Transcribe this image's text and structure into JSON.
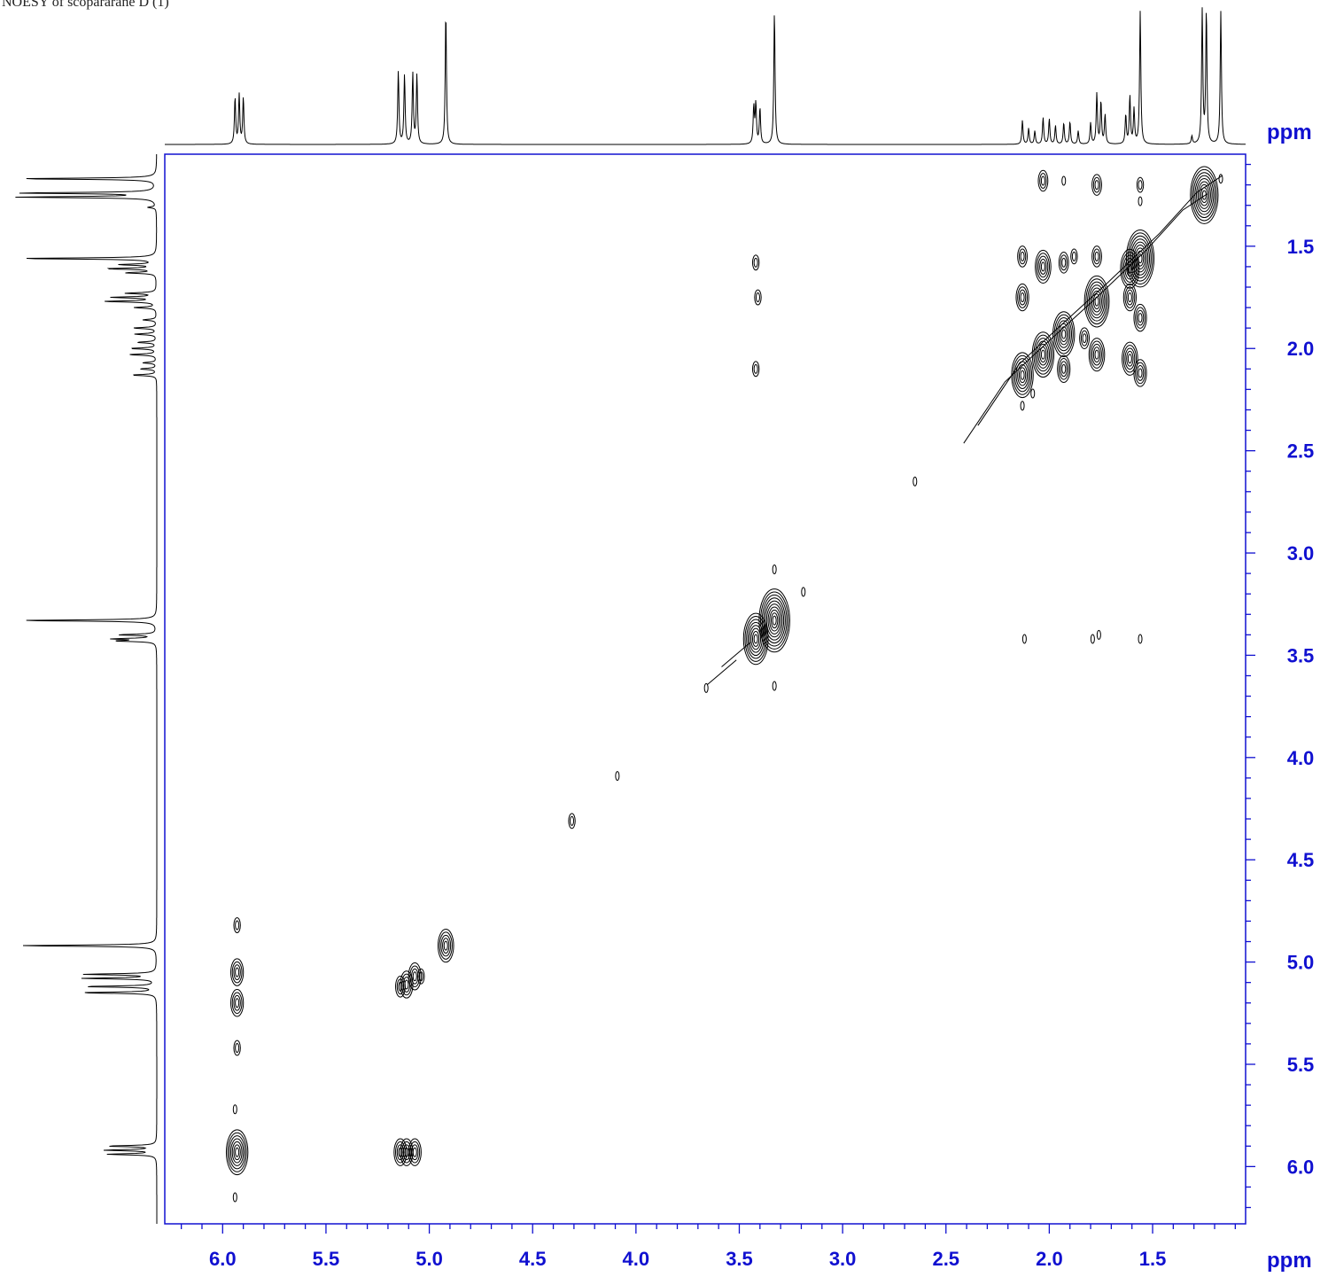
{
  "title": "NOESY of scopararane D (1)",
  "colors": {
    "axis": "#1010d0",
    "trace": "#000000"
  },
  "chart_data": {
    "type": "contour",
    "x_unit": "ppm",
    "y_unit": "ppm",
    "xlim": [
      6.28,
      1.05
    ],
    "ylim": [
      1.05,
      6.28
    ],
    "x_ticks": [
      6.0,
      5.5,
      5.0,
      4.5,
      4.0,
      3.5,
      3.0,
      2.5,
      2.0,
      1.5
    ],
    "y_ticks": [
      1.5,
      2.0,
      2.5,
      3.0,
      3.5,
      4.0,
      4.5,
      5.0,
      5.5,
      6.0
    ],
    "x_tick_labels": [
      "6.0",
      "5.5",
      "5.0",
      "4.5",
      "4.0",
      "3.5",
      "3.0",
      "2.5",
      "2.0",
      "1.5"
    ],
    "y_tick_labels": [
      "1.5",
      "2.0",
      "2.5",
      "3.0",
      "3.5",
      "4.0",
      "4.5",
      "5.0",
      "5.5",
      "6.0"
    ],
    "projection_1d": [
      {
        "shift": 5.94,
        "height": 0.35
      },
      {
        "shift": 5.92,
        "height": 0.37
      },
      {
        "shift": 5.9,
        "height": 0.35
      },
      {
        "shift": 5.15,
        "height": 0.55
      },
      {
        "shift": 5.12,
        "height": 0.52
      },
      {
        "shift": 5.08,
        "height": 0.53
      },
      {
        "shift": 5.06,
        "height": 0.52
      },
      {
        "shift": 4.92,
        "height": 1.0
      },
      {
        "shift": 3.43,
        "height": 0.28
      },
      {
        "shift": 3.42,
        "height": 0.3
      },
      {
        "shift": 3.4,
        "height": 0.27
      },
      {
        "shift": 3.33,
        "height": 1.0
      },
      {
        "shift": 2.13,
        "height": 0.18
      },
      {
        "shift": 2.1,
        "height": 0.12
      },
      {
        "shift": 2.07,
        "height": 0.1
      },
      {
        "shift": 2.03,
        "height": 0.2
      },
      {
        "shift": 2.0,
        "height": 0.19
      },
      {
        "shift": 1.97,
        "height": 0.14
      },
      {
        "shift": 1.93,
        "height": 0.16
      },
      {
        "shift": 1.9,
        "height": 0.17
      },
      {
        "shift": 1.86,
        "height": 0.1
      },
      {
        "shift": 1.8,
        "height": 0.16
      },
      {
        "shift": 1.77,
        "height": 0.38
      },
      {
        "shift": 1.75,
        "height": 0.32
      },
      {
        "shift": 1.73,
        "height": 0.22
      },
      {
        "shift": 1.63,
        "height": 0.22
      },
      {
        "shift": 1.61,
        "height": 0.36
      },
      {
        "shift": 1.59,
        "height": 0.26
      },
      {
        "shift": 1.56,
        "height": 1.0
      },
      {
        "shift": 1.31,
        "height": 0.06
      },
      {
        "shift": 1.26,
        "height": 1.0
      },
      {
        "shift": 1.24,
        "height": 1.0
      },
      {
        "shift": 1.17,
        "height": 1.0
      }
    ],
    "diagonal_peaks": [
      {
        "x": 5.93,
        "y": 5.93,
        "i": 7
      },
      {
        "x": 5.11,
        "y": 5.11,
        "i": 4
      },
      {
        "x": 5.07,
        "y": 5.07,
        "i": 4
      },
      {
        "x": 4.92,
        "y": 4.92,
        "i": 5
      },
      {
        "x": 4.31,
        "y": 4.31,
        "i": 2
      },
      {
        "x": 4.09,
        "y": 4.09,
        "i": 1
      },
      {
        "x": 3.66,
        "y": 3.66,
        "i": 1
      },
      {
        "x": 3.42,
        "y": 3.42,
        "i": 8
      },
      {
        "x": 3.33,
        "y": 3.33,
        "i": 10
      },
      {
        "x": 3.19,
        "y": 3.19,
        "i": 1
      },
      {
        "x": 2.65,
        "y": 2.65,
        "i": 1
      },
      {
        "x": 2.13,
        "y": 2.13,
        "i": 7
      },
      {
        "x": 2.03,
        "y": 2.03,
        "i": 7
      },
      {
        "x": 1.93,
        "y": 1.93,
        "i": 7
      },
      {
        "x": 1.77,
        "y": 1.77,
        "i": 8
      },
      {
        "x": 1.61,
        "y": 1.61,
        "i": 6
      },
      {
        "x": 1.56,
        "y": 1.56,
        "i": 9
      },
      {
        "x": 1.25,
        "y": 1.25,
        "i": 9
      }
    ],
    "cross_peaks": [
      {
        "x": 5.93,
        "y": 5.05,
        "i": 4
      },
      {
        "x": 5.93,
        "y": 5.2,
        "i": 4
      },
      {
        "x": 5.93,
        "y": 4.82,
        "i": 2
      },
      {
        "x": 5.93,
        "y": 5.42,
        "i": 2
      },
      {
        "x": 5.14,
        "y": 5.93,
        "i": 4
      },
      {
        "x": 5.11,
        "y": 5.93,
        "i": 4
      },
      {
        "x": 5.07,
        "y": 5.93,
        "i": 4
      },
      {
        "x": 5.14,
        "y": 5.12,
        "i": 3
      },
      {
        "x": 5.04,
        "y": 5.07,
        "i": 2
      },
      {
        "x": 3.42,
        "y": 1.58,
        "i": 2
      },
      {
        "x": 3.41,
        "y": 1.75,
        "i": 2
      },
      {
        "x": 3.42,
        "y": 2.1,
        "i": 2
      },
      {
        "x": 2.12,
        "y": 3.42,
        "i": 1
      },
      {
        "x": 1.79,
        "y": 3.42,
        "i": 1
      },
      {
        "x": 1.76,
        "y": 3.4,
        "i": 1
      },
      {
        "x": 1.56,
        "y": 3.42,
        "i": 1
      },
      {
        "x": 2.03,
        "y": 1.18,
        "i": 3
      },
      {
        "x": 1.93,
        "y": 1.18,
        "i": 1
      },
      {
        "x": 1.77,
        "y": 1.2,
        "i": 3
      },
      {
        "x": 1.56,
        "y": 1.2,
        "i": 2
      },
      {
        "x": 1.17,
        "y": 1.17,
        "i": 1
      },
      {
        "x": 2.13,
        "y": 1.75,
        "i": 4
      },
      {
        "x": 2.13,
        "y": 1.55,
        "i": 3
      },
      {
        "x": 2.03,
        "y": 1.6,
        "i": 5
      },
      {
        "x": 1.93,
        "y": 2.1,
        "i": 4
      },
      {
        "x": 1.93,
        "y": 1.58,
        "i": 3
      },
      {
        "x": 1.77,
        "y": 2.03,
        "i": 5
      },
      {
        "x": 1.77,
        "y": 1.55,
        "i": 3
      },
      {
        "x": 1.61,
        "y": 1.75,
        "i": 4
      },
      {
        "x": 1.61,
        "y": 2.05,
        "i": 5
      },
      {
        "x": 1.56,
        "y": 1.85,
        "i": 4
      },
      {
        "x": 1.56,
        "y": 2.12,
        "i": 4
      },
      {
        "x": 1.88,
        "y": 1.55,
        "i": 2
      },
      {
        "x": 1.83,
        "y": 1.95,
        "i": 3
      },
      {
        "x": 2.13,
        "y": 2.28,
        "i": 1
      },
      {
        "x": 2.08,
        "y": 2.22,
        "i": 1
      }
    ],
    "extra_peaks": [
      {
        "x": 3.33,
        "y": 3.08,
        "i": 1
      },
      {
        "x": 3.33,
        "y": 3.65,
        "i": 1
      },
      {
        "x": 1.56,
        "y": 1.28,
        "i": 1
      },
      {
        "x": 5.94,
        "y": 6.15,
        "i": 1
      },
      {
        "x": 5.94,
        "y": 5.72,
        "i": 1
      }
    ],
    "ridges": [
      {
        "points": [
          [
            2.38,
            2.42
          ],
          [
            2.18,
            2.12
          ],
          [
            2.0,
            1.95
          ],
          [
            1.75,
            1.72
          ],
          [
            1.5,
            1.48
          ],
          [
            1.32,
            1.28
          ],
          [
            1.2,
            1.2
          ]
        ]
      },
      {
        "points": [
          [
            3.62,
            3.6
          ],
          [
            3.48,
            3.48
          ]
        ]
      }
    ]
  }
}
